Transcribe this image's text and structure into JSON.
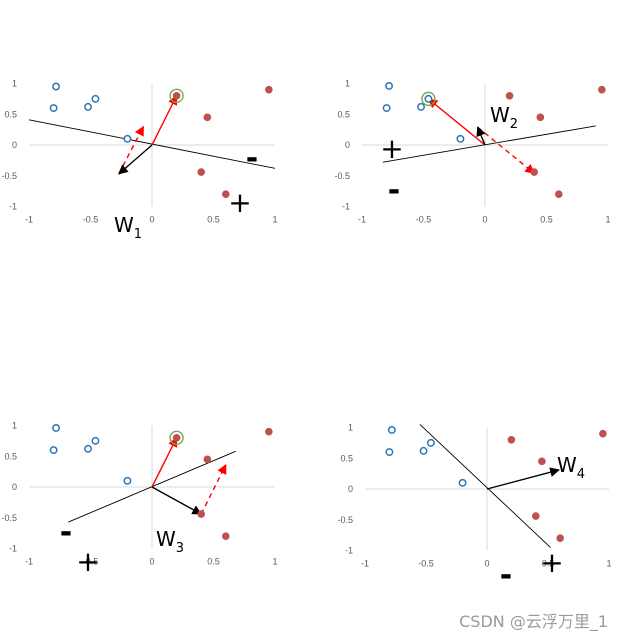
{
  "colors": {
    "positive_point": "#c0504d",
    "negative_point": "#2e75b6",
    "highlight_ring": "#70ad47",
    "axis": "#d9d9d9",
    "boundary": "#000000",
    "update_vector": "#ff0000",
    "weight_vector": "#000000"
  },
  "watermark": "CSDN @云浮万里_1",
  "chart_data": [
    {
      "type": "scatter",
      "xlim": [
        -1,
        1
      ],
      "ylim": [
        -1,
        1
      ],
      "x_ticks": [
        "-1",
        "-0.5",
        "0",
        "0.5",
        "1"
      ],
      "y_ticks": [
        "1",
        "0.5",
        "0",
        "-0.5",
        "-1"
      ],
      "series": [
        {
          "class": "negative",
          "points": [
            [
              -0.78,
              0.95
            ],
            [
              -0.8,
              0.6
            ],
            [
              -0.52,
              0.62
            ],
            [
              -0.46,
              0.75
            ],
            [
              -0.2,
              0.1
            ]
          ]
        },
        {
          "class": "positive",
          "points": [
            [
              0.2,
              0.8
            ],
            [
              0.95,
              0.9
            ],
            [
              0.45,
              0.45
            ],
            [
              0.4,
              -0.44
            ],
            [
              0.6,
              -0.8
            ]
          ]
        }
      ],
      "highlight_point": [
        0.2,
        0.8
      ],
      "boundary_line": [
        [
          -1,
          0.41
        ],
        [
          1,
          -0.38
        ]
      ],
      "weight_vector": {
        "from": [
          0,
          0
        ],
        "to": [
          -0.27,
          -0.47
        ],
        "label": "W",
        "subscript": "1"
      },
      "update_vector_solid": {
        "from": [
          0,
          0
        ],
        "to": [
          0.2,
          0.8
        ]
      },
      "update_vector_dashed": {
        "from": [
          -0.27,
          -0.47
        ],
        "to": [
          -0.07,
          0.3
        ]
      },
      "plus_label": "+",
      "minus_label": "-"
    },
    {
      "type": "scatter",
      "xlim": [
        -1,
        1
      ],
      "ylim": [
        -1,
        1
      ],
      "x_ticks": [
        "-1",
        "-0.5",
        "0",
        "0.5",
        "1"
      ],
      "y_ticks": [
        "1",
        "0.5",
        "0",
        "-0.5",
        "-1"
      ],
      "series": [
        {
          "class": "negative",
          "points": [
            [
              -0.78,
              0.96
            ],
            [
              -0.8,
              0.6
            ],
            [
              -0.52,
              0.62
            ],
            [
              -0.46,
              0.75
            ],
            [
              -0.2,
              0.1
            ]
          ]
        },
        {
          "class": "positive",
          "points": [
            [
              0.2,
              0.8
            ],
            [
              0.95,
              0.9
            ],
            [
              0.45,
              0.45
            ],
            [
              0.4,
              -0.44
            ],
            [
              0.6,
              -0.8
            ]
          ]
        }
      ],
      "highlight_point": [
        -0.46,
        0.75
      ],
      "boundary_line": [
        [
          -0.83,
          -0.28
        ],
        [
          0.9,
          0.31
        ]
      ],
      "weight_vector": {
        "from": [
          0,
          0
        ],
        "to": [
          -0.06,
          0.29
        ],
        "label": "W",
        "subscript": "2"
      },
      "update_vector_solid": {
        "from": [
          0,
          0
        ],
        "to": [
          -0.46,
          0.75
        ]
      },
      "update_vector_dashed": {
        "from": [
          -0.06,
          0.29
        ],
        "to": [
          0.4,
          -0.46
        ]
      },
      "plus_label": "+",
      "minus_label": "-"
    },
    {
      "type": "scatter",
      "xlim": [
        -1,
        1
      ],
      "ylim": [
        -1,
        1
      ],
      "x_ticks": [
        "-1",
        "-0.5",
        "0",
        "0.5",
        "1"
      ],
      "y_ticks": [
        "1",
        "0.5",
        "0",
        "-0.5",
        "-1"
      ],
      "series": [
        {
          "class": "negative",
          "points": [
            [
              -0.78,
              0.96
            ],
            [
              -0.8,
              0.6
            ],
            [
              -0.52,
              0.62
            ],
            [
              -0.46,
              0.75
            ],
            [
              -0.2,
              0.1
            ]
          ]
        },
        {
          "class": "positive",
          "points": [
            [
              0.2,
              0.8
            ],
            [
              0.95,
              0.9
            ],
            [
              0.45,
              0.45
            ],
            [
              0.4,
              -0.44
            ],
            [
              0.6,
              -0.8
            ]
          ]
        }
      ],
      "highlight_point": [
        0.2,
        0.8
      ],
      "boundary_line": [
        [
          -0.68,
          -0.57
        ],
        [
          0.68,
          0.58
        ]
      ],
      "weight_vector": {
        "from": [
          0,
          0
        ],
        "to": [
          0.4,
          -0.44
        ],
        "label": "W",
        "subscript": "3"
      },
      "update_vector_solid": {
        "from": [
          0,
          0
        ],
        "to": [
          0.2,
          0.8
        ]
      },
      "update_vector_dashed": {
        "from": [
          0.4,
          -0.44
        ],
        "to": [
          0.6,
          0.36
        ]
      },
      "plus_label": "+",
      "minus_label": "-"
    },
    {
      "type": "scatter",
      "xlim": [
        -1,
        1
      ],
      "ylim": [
        -1,
        1
      ],
      "x_ticks": [
        "-1",
        "-0.5",
        "0",
        "0.5",
        "1"
      ],
      "y_ticks": [
        "1",
        "0.5",
        "0",
        "-0.5",
        "-1"
      ],
      "series": [
        {
          "class": "negative",
          "points": [
            [
              -0.78,
              0.96
            ],
            [
              -0.8,
              0.6
            ],
            [
              -0.52,
              0.62
            ],
            [
              -0.46,
              0.75
            ],
            [
              -0.2,
              0.1
            ]
          ]
        },
        {
          "class": "positive",
          "points": [
            [
              0.2,
              0.8
            ],
            [
              0.95,
              0.9
            ],
            [
              0.45,
              0.45
            ],
            [
              0.4,
              -0.44
            ],
            [
              0.6,
              -0.8
            ]
          ]
        }
      ],
      "highlight_point": null,
      "boundary_line": [
        [
          -0.55,
          1.05
        ],
        [
          0.52,
          -0.95
        ]
      ],
      "weight_vector": {
        "from": [
          0,
          0
        ],
        "to": [
          0.59,
          0.31
        ],
        "label": "W",
        "subscript": "4"
      },
      "update_vector_solid": null,
      "update_vector_dashed": null,
      "plus_label": "+",
      "minus_label": "-"
    }
  ]
}
